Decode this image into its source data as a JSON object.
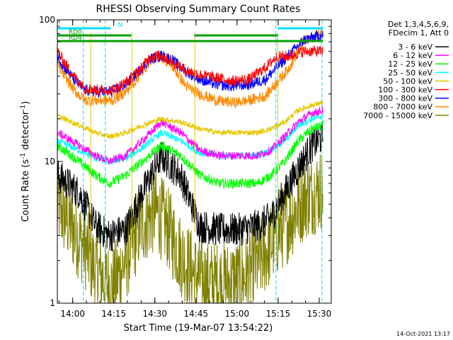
{
  "chart_data": {
    "type": "line",
    "title": "RHESSI Observing Summary Count Rates",
    "xlabel": "Start Time (19-Mar-07 13:54:22)",
    "ylabel_main": "Count Rate (s",
    "ylabel_sup1": "-1",
    "ylabel_mid": " detector",
    "ylabel_sup2": "-1",
    "ylabel_end": ")",
    "y_log": true,
    "ylim": [
      1,
      100
    ],
    "xlim_minutes": [
      0,
      100
    ],
    "x_unit_note": "minutes after 13:54:22",
    "y_ticks": [
      {
        "value": 1,
        "label": "1"
      },
      {
        "value": 10,
        "label": "10"
      },
      {
        "value": 100,
        "label": "100"
      }
    ],
    "x_ticks": [
      {
        "t": 5.6,
        "label": "14:00"
      },
      {
        "t": 20.6,
        "label": "14:15"
      },
      {
        "t": 35.6,
        "label": "14:30"
      },
      {
        "t": 50.6,
        "label": "14:45"
      },
      {
        "t": 65.6,
        "label": "15:00"
      },
      {
        "t": 80.6,
        "label": "15:15"
      },
      {
        "t": 95.6,
        "label": "15:30"
      }
    ],
    "legend_header": [
      "Det 1,3,4,5,6,9,",
      "FDecim 1, Att 0"
    ],
    "series": [
      {
        "name": "3 - 6 keV",
        "color": "#000000",
        "x": [
          0,
          8,
          14,
          19,
          25,
          31,
          38,
          45,
          52,
          59,
          66,
          73,
          78,
          83,
          88,
          93,
          97
        ],
        "values": [
          8,
          6,
          3.5,
          3,
          3.3,
          6,
          11,
          8,
          3.5,
          3.3,
          3.3,
          3.5,
          4,
          6,
          9,
          13,
          15
        ],
        "noise": 0.12
      },
      {
        "name": "6 - 12 keV",
        "color": "#ff00ff",
        "x": [
          0,
          8,
          14,
          19,
          25,
          31,
          38,
          45,
          52,
          59,
          66,
          73,
          78,
          83,
          88,
          93,
          97
        ],
        "values": [
          16,
          13,
          11,
          10,
          11,
          14,
          19,
          16,
          12,
          11,
          11,
          11,
          12,
          15,
          19,
          22,
          23
        ],
        "noise": 0.03
      },
      {
        "name": "12 - 25 keV",
        "color": "#00ff00",
        "x": [
          0,
          8,
          14,
          19,
          25,
          31,
          38,
          45,
          52,
          59,
          66,
          73,
          78,
          83,
          88,
          93,
          97
        ],
        "values": [
          13,
          10,
          8,
          7,
          8,
          10,
          13,
          11,
          8,
          7,
          7,
          7,
          8,
          10,
          14,
          17,
          18
        ],
        "noise": 0.035
      },
      {
        "name": "25 - 50 keV",
        "color": "#00ffff",
        "x": [
          0,
          8,
          14,
          19,
          25,
          31,
          38,
          45,
          52,
          59,
          66,
          73,
          78,
          83,
          88,
          93,
          97
        ],
        "values": [
          14,
          12,
          10.5,
          10,
          10.5,
          12.5,
          16,
          14,
          11.5,
          11,
          11,
          11,
          12,
          14,
          18,
          20,
          21
        ],
        "noise": 0.025
      },
      {
        "name": "50 - 100 keV",
        "color": "#e6c800",
        "x": [
          0,
          8,
          14,
          19,
          25,
          31,
          38,
          45,
          52,
          59,
          66,
          73,
          78,
          83,
          88,
          93,
          97
        ],
        "values": [
          21,
          18,
          16,
          15,
          16,
          18,
          20,
          19,
          17,
          16,
          16,
          16,
          17,
          19,
          23,
          25,
          26
        ],
        "noise": 0.02
      },
      {
        "name": "100 - 300 keV",
        "color": "#ff0000",
        "x": [
          0,
          2,
          6,
          10,
          14,
          20,
          25,
          30,
          34,
          38,
          42,
          47,
          52,
          58,
          64,
          70,
          76,
          80,
          84,
          90,
          96,
          97
        ],
        "values": [
          60,
          52,
          40,
          33,
          32,
          32,
          36,
          44,
          55,
          56,
          50,
          44,
          41,
          39,
          37,
          38,
          46,
          55,
          55,
          60,
          60,
          60
        ],
        "noise": 0.04
      },
      {
        "name": "300 - 800 keV",
        "color": "#0000ff",
        "x": [
          0,
          2,
          6,
          10,
          14,
          20,
          25,
          30,
          34,
          38,
          42,
          47,
          52,
          58,
          64,
          70,
          76,
          80,
          84,
          90,
          96,
          97
        ],
        "values": [
          56,
          48,
          38,
          32,
          31,
          31,
          35,
          44,
          53,
          56,
          52,
          43,
          38,
          35,
          34,
          35,
          38,
          46,
          55,
          72,
          78,
          78
        ],
        "noise": 0.04
      },
      {
        "name": "800 - 7000 keV",
        "color": "#ff8c00",
        "x": [
          0,
          2,
          6,
          10,
          14,
          20,
          25,
          30,
          34,
          38,
          42,
          47,
          52,
          58,
          64,
          70,
          76,
          80,
          84,
          90,
          96,
          97
        ],
        "values": [
          48,
          42,
          32,
          27,
          27,
          27,
          31,
          40,
          52,
          55,
          47,
          34,
          30,
          27,
          26,
          27,
          29,
          36,
          44,
          70,
          80,
          80
        ],
        "noise": 0.04
      },
      {
        "name": "7000 - 15000 keV",
        "color": "#808000",
        "x": [
          0,
          5,
          10,
          14,
          20,
          25,
          30,
          36,
          40,
          45,
          50,
          55,
          62,
          68,
          74,
          80,
          85,
          90,
          97
        ],
        "values": [
          5,
          3.5,
          2.5,
          1.7,
          1.3,
          2,
          3.5,
          4.5,
          3.5,
          2.2,
          1.6,
          1.4,
          1.4,
          1.5,
          2,
          3,
          4,
          5.5,
          6.5
        ],
        "noise": 0.3
      }
    ],
    "segments": [
      {
        "label": "",
        "color": "#00e0ff",
        "row": 0,
        "from": 0,
        "to": 18
      },
      {
        "label": "N",
        "color": "#00e0ff",
        "row": 0,
        "from": 18,
        "to": 19.5
      },
      {
        "label": "",
        "color": "#00e0ff",
        "row": 0,
        "from": 80.5,
        "to": 97
      },
      {
        "label": "RD0",
        "color": "#00a000",
        "row": 1,
        "from": 0,
        "to": 22
      },
      {
        "label": "RD4",
        "color": "#00a000",
        "row": 2,
        "from": 0,
        "to": 97
      },
      {
        "label": "",
        "color": "#00a000",
        "row": 1,
        "from": 12,
        "to": 27
      },
      {
        "label": "",
        "color": "#00a000",
        "row": 1,
        "from": 50,
        "to": 80.5
      }
    ],
    "vlines": [
      {
        "t": 9.5,
        "color": "#00e0ff"
      },
      {
        "t": 17.5,
        "color": "#00e0ff"
      },
      {
        "t": 79.8,
        "color": "#00e0ff"
      },
      {
        "t": 96.6,
        "color": "#00e0ff"
      }
    ],
    "yellow_vlines": [
      12.2,
      27.2,
      50.2,
      80.5
    ],
    "footer_timestamp": "14-Oct-2021 13:17"
  }
}
